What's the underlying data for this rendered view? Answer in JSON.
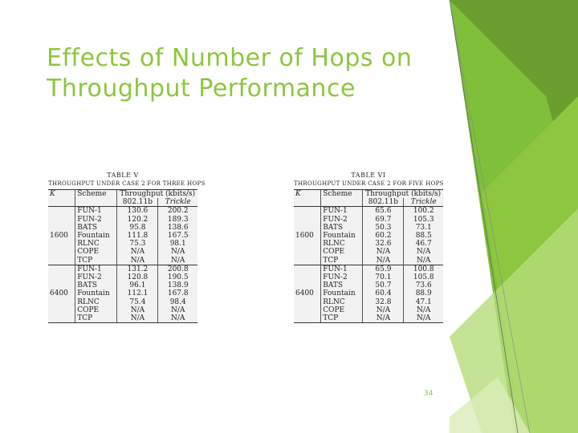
{
  "slide": {
    "title_line1": "Effects of Number of Hops on",
    "title_line2": "Throughput Performance",
    "page_number": "34",
    "accent_color": "#8dc63f"
  },
  "tables": [
    {
      "label": "TABLE V",
      "caption": "THROUGHPUT UNDER CASE 2 FOR THREE HOPS",
      "headers": {
        "k": "K",
        "scheme": "Scheme",
        "throughput": "Throughput (kbits/s)",
        "col_a": "802.11b",
        "col_b": "Trickle"
      },
      "groups": [
        {
          "k": "1600",
          "rows": [
            {
              "scheme": "FUN-1",
              "a": "130.6",
              "b": "200.2"
            },
            {
              "scheme": "FUN-2",
              "a": "120.2",
              "b": "189.3"
            },
            {
              "scheme": "BATS",
              "a": "95.8",
              "b": "138.6"
            },
            {
              "scheme": "Fountain",
              "a": "111.8",
              "b": "167.5"
            },
            {
              "scheme": "RLNC",
              "a": "75.3",
              "b": "98.1"
            },
            {
              "scheme": "COPE",
              "a": "N/A",
              "b": "N/A"
            },
            {
              "scheme": "TCP",
              "a": "N/A",
              "b": "N/A"
            }
          ]
        },
        {
          "k": "6400",
          "rows": [
            {
              "scheme": "FUN-1",
              "a": "131.2",
              "b": "200.8"
            },
            {
              "scheme": "FUN-2",
              "a": "120.8",
              "b": "190.5"
            },
            {
              "scheme": "BATS",
              "a": "96.1",
              "b": "138.9"
            },
            {
              "scheme": "Fountain",
              "a": "112.1",
              "b": "167.8"
            },
            {
              "scheme": "RLNC",
              "a": "75.4",
              "b": "98.4"
            },
            {
              "scheme": "COPE",
              "a": "N/A",
              "b": "N/A"
            },
            {
              "scheme": "TCP",
              "a": "N/A",
              "b": "N/A"
            }
          ]
        }
      ]
    },
    {
      "label": "TABLE VI",
      "caption": "THROUGHPUT UNDER CASE 2 FOR FIVE HOPS",
      "headers": {
        "k": "K",
        "scheme": "Scheme",
        "throughput": "Throughput (kbits/s)",
        "col_a": "802.11b",
        "col_b": "Trickle"
      },
      "groups": [
        {
          "k": "1600",
          "rows": [
            {
              "scheme": "FUN-1",
              "a": "65.6",
              "b": "100.2"
            },
            {
              "scheme": "FUN-2",
              "a": "69.7",
              "b": "105.3"
            },
            {
              "scheme": "BATS",
              "a": "50.3",
              "b": "73.1"
            },
            {
              "scheme": "Fountain",
              "a": "60.2",
              "b": "88.5"
            },
            {
              "scheme": "RLNC",
              "a": "32.6",
              "b": "46.7"
            },
            {
              "scheme": "COPE",
              "a": "N/A",
              "b": "N/A"
            },
            {
              "scheme": "TCP",
              "a": "N/A",
              "b": "N/A"
            }
          ]
        },
        {
          "k": "6400",
          "rows": [
            {
              "scheme": "FUN-1",
              "a": "65.9",
              "b": "100.8"
            },
            {
              "scheme": "FUN-2",
              "a": "70.1",
              "b": "105.8"
            },
            {
              "scheme": "BATS",
              "a": "50.7",
              "b": "73.6"
            },
            {
              "scheme": "Fountain",
              "a": "60.4",
              "b": "88.9"
            },
            {
              "scheme": "RLNC",
              "a": "32.8",
              "b": "47.1"
            },
            {
              "scheme": "COPE",
              "a": "N/A",
              "b": "N/A"
            },
            {
              "scheme": "TCP",
              "a": "N/A",
              "b": "N/A"
            }
          ]
        }
      ]
    }
  ]
}
